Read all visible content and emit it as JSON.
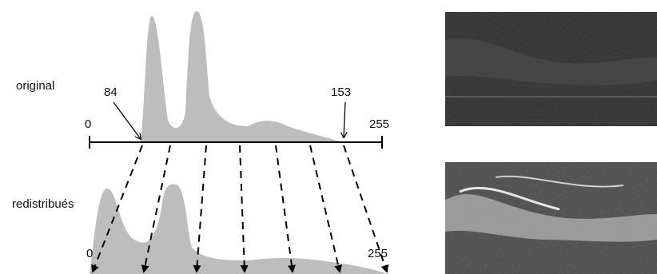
{
  "top": {
    "label": "original",
    "min": "0",
    "max": "255",
    "low": "84",
    "high": "153"
  },
  "bottom": {
    "label": "redistribués",
    "min": "0",
    "max": "255"
  }
}
